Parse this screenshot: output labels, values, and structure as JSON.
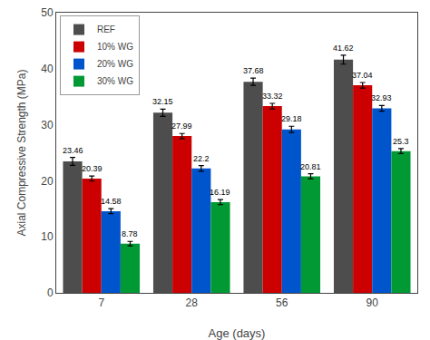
{
  "chart_data": {
    "type": "bar",
    "xlabel": "Age (days)",
    "ylabel": "Axial Compressive Strength (MPa)",
    "categories": [
      "7",
      "28",
      "56",
      "90"
    ],
    "series": [
      {
        "name": "REF",
        "color": "#4d4d4d",
        "values": [
          23.46,
          32.15,
          37.68,
          41.62
        ],
        "errors": [
          0.7,
          0.65,
          0.65,
          0.8
        ]
      },
      {
        "name": "10% WG",
        "color": "#cc0000",
        "values": [
          20.39,
          27.99,
          33.32,
          37.04
        ],
        "errors": [
          0.45,
          0.45,
          0.5,
          0.5
        ]
      },
      {
        "name": "20% WG",
        "color": "#0055cc",
        "values": [
          14.58,
          22.2,
          29.18,
          32.93
        ],
        "errors": [
          0.45,
          0.5,
          0.55,
          0.5
        ]
      },
      {
        "name": "30% WG",
        "color": "#009933",
        "values": [
          8.78,
          16.19,
          20.81,
          25.3
        ],
        "errors": [
          0.4,
          0.45,
          0.45,
          0.45
        ]
      }
    ],
    "ylim": [
      0,
      50
    ],
    "yticks": [
      0,
      10,
      20,
      30,
      40,
      50
    ],
    "grid": false,
    "legend": "upper left",
    "data_labels": true
  }
}
